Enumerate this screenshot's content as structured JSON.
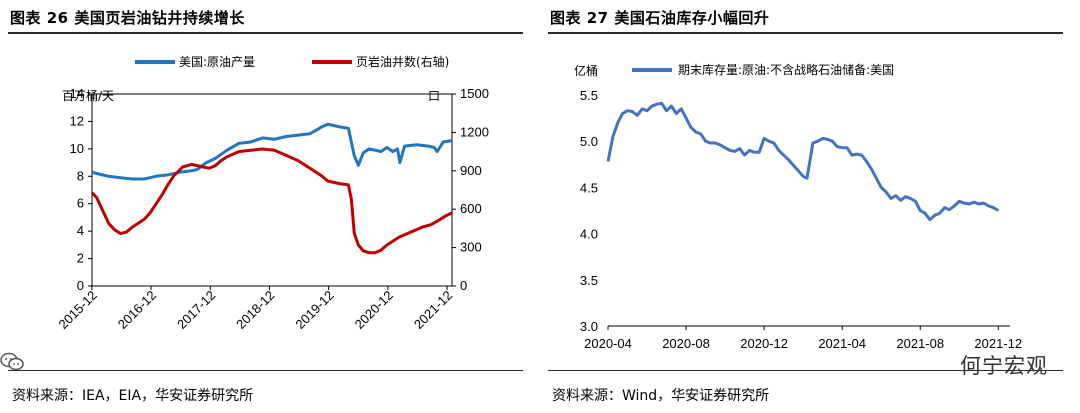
{
  "left": {
    "title": "图表 26 美国页岩油钻井持续增长",
    "source": "资料来源：IEA，EIA，华安证券研究所",
    "chart_data": {
      "type": "line",
      "title": "美国页岩油钻井持续增长",
      "ylabel": "百万桶/天",
      "y2label": "口",
      "ylim": [
        0,
        14
      ],
      "y2lim": [
        0,
        1500
      ],
      "yticks": [
        "0",
        "2",
        "4",
        "6",
        "8",
        "10",
        "12",
        "14"
      ],
      "y2ticks": [
        "0",
        "300",
        "600",
        "900",
        "1200",
        "1500"
      ],
      "xticks": [
        "2015-12",
        "2016-12",
        "2017-12",
        "2018-12",
        "2019-12",
        "2020-12",
        "2021-12"
      ],
      "x_range": [
        2015.92,
        2022.0
      ],
      "series": [
        {
          "name": "美国:原油产量",
          "axis": "left",
          "color": "#1f77c0",
          "points": [
            [
              2015.92,
              8.3
            ],
            [
              2016.0,
              8.2
            ],
            [
              2016.2,
              8.0
            ],
            [
              2016.4,
              7.9
            ],
            [
              2016.6,
              7.8
            ],
            [
              2016.8,
              7.8
            ],
            [
              2016.9,
              7.9
            ],
            [
              2017.0,
              8.0
            ],
            [
              2017.2,
              8.1
            ],
            [
              2017.4,
              8.3
            ],
            [
              2017.6,
              8.4
            ],
            [
              2017.7,
              8.5
            ],
            [
              2017.85,
              9.0
            ],
            [
              2018.0,
              9.3
            ],
            [
              2018.2,
              9.9
            ],
            [
              2018.4,
              10.4
            ],
            [
              2018.6,
              10.5
            ],
            [
              2018.8,
              10.8
            ],
            [
              2019.0,
              10.7
            ],
            [
              2019.2,
              10.9
            ],
            [
              2019.4,
              11.0
            ],
            [
              2019.6,
              11.1
            ],
            [
              2019.8,
              11.6
            ],
            [
              2019.9,
              11.8
            ],
            [
              2020.0,
              11.7
            ],
            [
              2020.1,
              11.6
            ],
            [
              2020.25,
              11.5
            ],
            [
              2020.35,
              9.5
            ],
            [
              2020.42,
              8.8
            ],
            [
              2020.5,
              9.7
            ],
            [
              2020.6,
              10.0
            ],
            [
              2020.7,
              9.9
            ],
            [
              2020.8,
              9.8
            ],
            [
              2020.9,
              10.1
            ],
            [
              2021.0,
              9.8
            ],
            [
              2021.08,
              10.0
            ],
            [
              2021.12,
              9.0
            ],
            [
              2021.2,
              10.2
            ],
            [
              2021.4,
              10.3
            ],
            [
              2021.6,
              10.2
            ],
            [
              2021.7,
              10.1
            ],
            [
              2021.75,
              9.8
            ],
            [
              2021.85,
              10.5
            ],
            [
              2022.0,
              10.6
            ]
          ]
        },
        {
          "name": "页岩油井数(右轴)",
          "axis": "right",
          "color": "#c00000",
          "points": [
            [
              2015.92,
              730
            ],
            [
              2016.0,
              690
            ],
            [
              2016.1,
              590
            ],
            [
              2016.2,
              490
            ],
            [
              2016.3,
              440
            ],
            [
              2016.4,
              410
            ],
            [
              2016.5,
              420
            ],
            [
              2016.6,
              460
            ],
            [
              2016.8,
              520
            ],
            [
              2016.9,
              570
            ],
            [
              2017.0,
              640
            ],
            [
              2017.1,
              710
            ],
            [
              2017.2,
              790
            ],
            [
              2017.3,
              860
            ],
            [
              2017.45,
              930
            ],
            [
              2017.6,
              950
            ],
            [
              2017.8,
              930
            ],
            [
              2017.9,
              920
            ],
            [
              2018.0,
              940
            ],
            [
              2018.1,
              980
            ],
            [
              2018.2,
              1010
            ],
            [
              2018.4,
              1050
            ],
            [
              2018.6,
              1060
            ],
            [
              2018.8,
              1070
            ],
            [
              2019.0,
              1060
            ],
            [
              2019.2,
              1020
            ],
            [
              2019.4,
              980
            ],
            [
              2019.6,
              920
            ],
            [
              2019.8,
              860
            ],
            [
              2019.9,
              820
            ],
            [
              2020.1,
              800
            ],
            [
              2020.25,
              790
            ],
            [
              2020.3,
              680
            ],
            [
              2020.35,
              410
            ],
            [
              2020.42,
              320
            ],
            [
              2020.5,
              275
            ],
            [
              2020.6,
              260
            ],
            [
              2020.7,
              260
            ],
            [
              2020.8,
              280
            ],
            [
              2020.9,
              320
            ],
            [
              2021.0,
              350
            ],
            [
              2021.1,
              380
            ],
            [
              2021.2,
              400
            ],
            [
              2021.35,
              430
            ],
            [
              2021.5,
              460
            ],
            [
              2021.65,
              480
            ],
            [
              2021.8,
              520
            ],
            [
              2021.9,
              550
            ],
            [
              2022.0,
              570
            ]
          ]
        }
      ]
    }
  },
  "right": {
    "title": "图表 27 美国石油库存小幅回升",
    "source": "资料来源：Wind，华安证券研究所",
    "chart_data": {
      "type": "line",
      "title": "美国石油库存小幅回升",
      "ylabel": "亿桶",
      "ylim": [
        3.0,
        5.5
      ],
      "yticks": [
        "3.0",
        "3.5",
        "4.0",
        "4.5",
        "5.0",
        "5.5"
      ],
      "xticks": [
        "2020-04",
        "2020-08",
        "2020-12",
        "2021-04",
        "2021-08",
        "2021-12"
      ],
      "x_range": [
        0,
        20.6
      ],
      "series": [
        {
          "name": "期末库存量:原油:不含战略石油储备:美国",
          "color": "#4472c4",
          "points": [
            [
              0,
              4.78
            ],
            [
              0.25,
              5.05
            ],
            [
              0.5,
              5.2
            ],
            [
              0.75,
              5.3
            ],
            [
              1.0,
              5.33
            ],
            [
              1.25,
              5.32
            ],
            [
              1.5,
              5.28
            ],
            [
              1.75,
              5.35
            ],
            [
              2.0,
              5.33
            ],
            [
              2.25,
              5.38
            ],
            [
              2.5,
              5.4
            ],
            [
              2.75,
              5.41
            ],
            [
              3.0,
              5.33
            ],
            [
              3.25,
              5.38
            ],
            [
              3.5,
              5.3
            ],
            [
              3.75,
              5.35
            ],
            [
              4.0,
              5.25
            ],
            [
              4.25,
              5.15
            ],
            [
              4.5,
              5.1
            ],
            [
              4.75,
              5.08
            ],
            [
              5.0,
              5.0
            ],
            [
              5.25,
              4.98
            ],
            [
              5.5,
              4.98
            ],
            [
              5.75,
              4.96
            ],
            [
              6.0,
              4.93
            ],
            [
              6.25,
              4.9
            ],
            [
              6.5,
              4.89
            ],
            [
              6.75,
              4.92
            ],
            [
              7.0,
              4.85
            ],
            [
              7.25,
              4.9
            ],
            [
              7.5,
              4.88
            ],
            [
              7.75,
              4.88
            ],
            [
              8.0,
              5.03
            ],
            [
              8.25,
              5.0
            ],
            [
              8.5,
              4.98
            ],
            [
              8.75,
              4.9
            ],
            [
              9.0,
              4.85
            ],
            [
              9.25,
              4.8
            ],
            [
              9.5,
              4.74
            ],
            [
              9.75,
              4.68
            ],
            [
              10.0,
              4.62
            ],
            [
              10.2,
              4.6
            ],
            [
              10.5,
              4.98
            ],
            [
              10.75,
              5.0
            ],
            [
              11.0,
              5.03
            ],
            [
              11.25,
              5.02
            ],
            [
              11.5,
              5.0
            ],
            [
              11.75,
              4.94
            ],
            [
              12.0,
              4.93
            ],
            [
              12.25,
              4.93
            ],
            [
              12.5,
              4.85
            ],
            [
              12.75,
              4.86
            ],
            [
              13.0,
              4.85
            ],
            [
              13.25,
              4.78
            ],
            [
              13.5,
              4.7
            ],
            [
              13.75,
              4.6
            ],
            [
              14.0,
              4.5
            ],
            [
              14.25,
              4.45
            ],
            [
              14.5,
              4.38
            ],
            [
              14.75,
              4.41
            ],
            [
              15.0,
              4.36
            ],
            [
              15.25,
              4.4
            ],
            [
              15.5,
              4.38
            ],
            [
              15.75,
              4.35
            ],
            [
              16.0,
              4.25
            ],
            [
              16.25,
              4.22
            ],
            [
              16.5,
              4.15
            ],
            [
              16.75,
              4.2
            ],
            [
              17.0,
              4.22
            ],
            [
              17.25,
              4.28
            ],
            [
              17.5,
              4.26
            ],
            [
              17.75,
              4.3
            ],
            [
              18.0,
              4.35
            ],
            [
              18.25,
              4.33
            ],
            [
              18.5,
              4.32
            ],
            [
              18.75,
              4.34
            ],
            [
              19.0,
              4.32
            ],
            [
              19.25,
              4.33
            ],
            [
              19.5,
              4.3
            ],
            [
              19.75,
              4.28
            ],
            [
              20.0,
              4.25
            ]
          ]
        }
      ]
    }
  },
  "watermark": "何宁宏观"
}
